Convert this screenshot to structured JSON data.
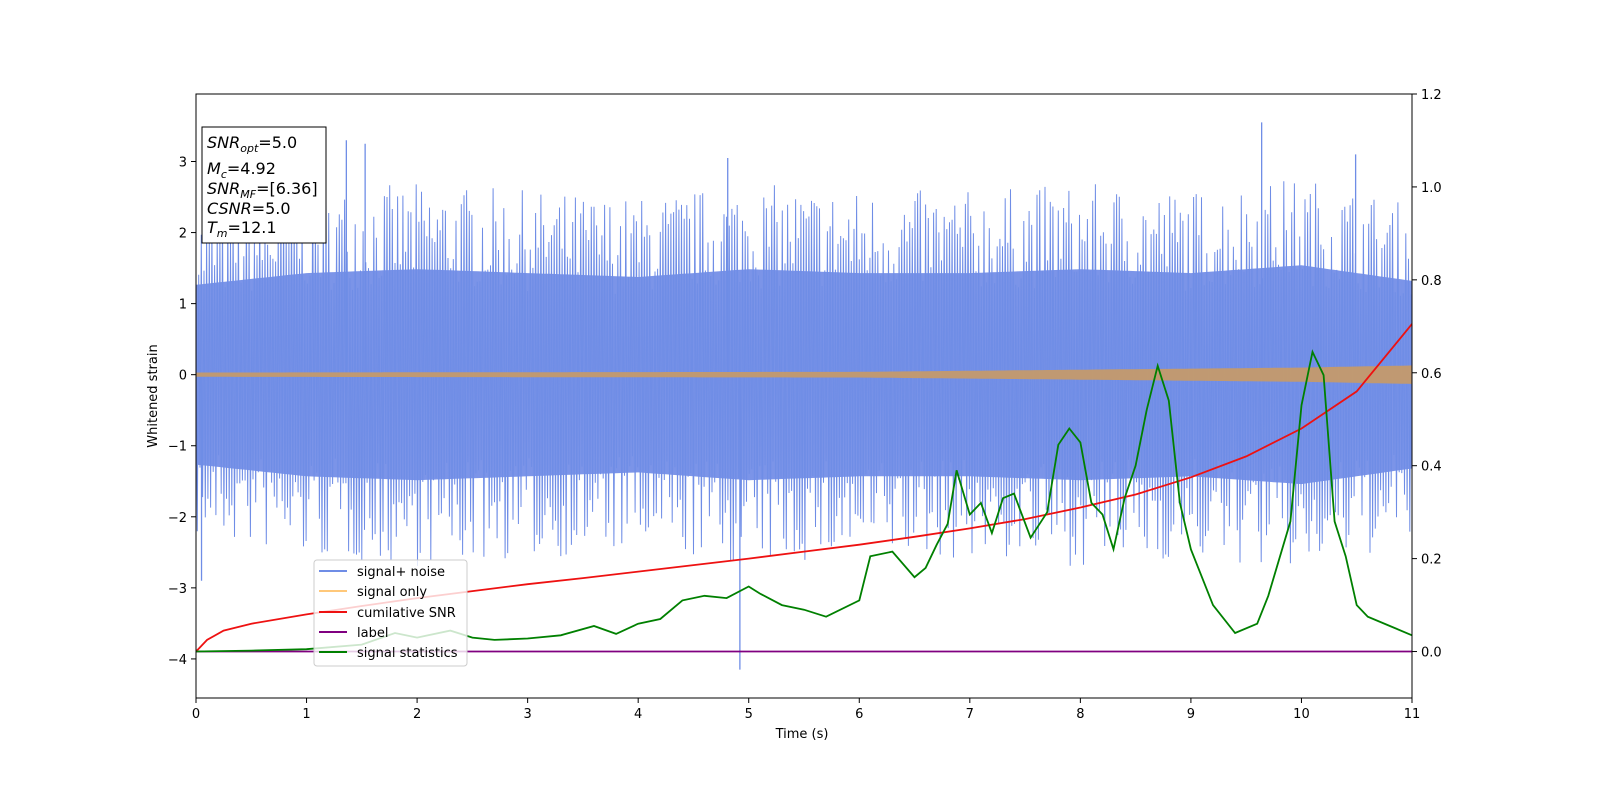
{
  "chart_data": {
    "type": "line",
    "xlabel": "Time (s)",
    "ylabel": "Whitened strain",
    "xlim": [
      0,
      11
    ],
    "ylim": [
      -4.55,
      3.95
    ],
    "y2lim": [
      -0.1,
      1.2
    ],
    "x_ticks": [
      "0",
      "1",
      "2",
      "3",
      "4",
      "5",
      "6",
      "7",
      "8",
      "9",
      "10",
      "11"
    ],
    "y_ticks": [
      "3",
      "2",
      "1",
      "0",
      "−1",
      "−2",
      "−3",
      "−4"
    ],
    "y2_ticks": [
      "1.2",
      "1.0",
      "0.8",
      "0.6",
      "0.4",
      "0.2",
      "0.0"
    ],
    "grid": false,
    "legend_position": "lower-left",
    "info_box": {
      "snr_opt_base": "SNR",
      "snr_opt_sub": "opt",
      "snr_opt_value": "=5.0",
      "mc_base": "M",
      "mc_sub": "c",
      "mc_value": "=4.92",
      "snr_mf_base": "SNR",
      "snr_mf_sub": "MF",
      "snr_mf_value": "=[6.36]",
      "csnr_base": "CSNR",
      "csnr_value": "=5.0",
      "tm_base": "T",
      "tm_sub": "m",
      "tm_value": "=12.1"
    },
    "series": [
      {
        "name": "signal+ noise",
        "color": "#6f8de6",
        "axis": "left",
        "envelope_x": [
          0,
          1,
          2,
          3,
          4,
          5,
          6,
          7,
          8,
          9,
          10,
          11
        ],
        "envelope_upper": [
          2.3,
          2.6,
          2.7,
          2.6,
          2.5,
          2.7,
          2.6,
          2.6,
          2.7,
          2.6,
          2.8,
          2.4
        ],
        "envelope_lower": [
          -2.3,
          -2.6,
          -2.7,
          -2.6,
          -2.5,
          -2.7,
          -2.6,
          -2.6,
          -2.7,
          -2.6,
          -2.8,
          -2.4
        ],
        "spike_x": [
          0.05,
          1.36,
          1.53,
          4.81,
          4.92,
          9.64,
          10.49
        ],
        "spike_y": [
          -2.9,
          3.3,
          3.25,
          3.05,
          -4.15,
          3.55,
          3.1
        ]
      },
      {
        "name": "signal only",
        "color": "#ffc87a",
        "axis": "left",
        "band_x": [
          0,
          6,
          8,
          10,
          11
        ],
        "band_half": [
          0.03,
          0.04,
          0.07,
          0.1,
          0.13
        ]
      },
      {
        "name": "cumilative SNR",
        "color": "#ee1111",
        "axis": "right",
        "x": [
          0,
          0.1,
          0.25,
          0.5,
          1,
          1.5,
          2,
          2.5,
          3,
          3.5,
          4,
          4.5,
          5,
          5.5,
          6,
          6.5,
          7,
          7.5,
          8,
          8.5,
          9,
          9.5,
          10,
          10.5,
          11
        ],
        "y": [
          0.0,
          0.025,
          0.045,
          0.06,
          0.08,
          0.098,
          0.115,
          0.13,
          0.145,
          0.158,
          0.172,
          0.186,
          0.2,
          0.215,
          0.23,
          0.247,
          0.265,
          0.285,
          0.31,
          0.338,
          0.375,
          0.42,
          0.48,
          0.56,
          0.705
        ]
      },
      {
        "name": "label",
        "color": "#800080",
        "axis": "right",
        "x": [
          0,
          11
        ],
        "y": [
          0.0,
          0.0
        ]
      },
      {
        "name": "signal statistics",
        "color": "#008000",
        "axis": "right",
        "x": [
          0,
          0.5,
          1,
          1.5,
          1.8,
          2.0,
          2.3,
          2.5,
          2.7,
          3.0,
          3.3,
          3.6,
          3.8,
          4.0,
          4.2,
          4.4,
          4.6,
          4.8,
          5.0,
          5.1,
          5.3,
          5.5,
          5.7,
          6.0,
          6.1,
          6.3,
          6.5,
          6.6,
          6.7,
          6.8,
          6.88,
          7.0,
          7.1,
          7.2,
          7.3,
          7.4,
          7.55,
          7.7,
          7.8,
          7.9,
          8.0,
          8.1,
          8.2,
          8.3,
          8.4,
          8.5,
          8.6,
          8.7,
          8.8,
          8.9,
          9.0,
          9.2,
          9.4,
          9.6,
          9.7,
          9.9,
          10.0,
          10.1,
          10.2,
          10.3,
          10.4,
          10.5,
          10.6,
          10.8,
          11.0
        ],
        "y": [
          0.0,
          0.002,
          0.005,
          0.015,
          0.04,
          0.03,
          0.045,
          0.03,
          0.025,
          0.028,
          0.035,
          0.055,
          0.038,
          0.06,
          0.07,
          0.11,
          0.12,
          0.115,
          0.14,
          0.125,
          0.1,
          0.09,
          0.075,
          0.11,
          0.205,
          0.215,
          0.16,
          0.18,
          0.23,
          0.275,
          0.39,
          0.295,
          0.32,
          0.255,
          0.33,
          0.34,
          0.245,
          0.3,
          0.445,
          0.48,
          0.45,
          0.32,
          0.295,
          0.22,
          0.33,
          0.4,
          0.52,
          0.615,
          0.54,
          0.32,
          0.22,
          0.1,
          0.04,
          0.06,
          0.12,
          0.28,
          0.53,
          0.645,
          0.595,
          0.28,
          0.205,
          0.1,
          0.075,
          0.055,
          0.035
        ]
      }
    ]
  }
}
